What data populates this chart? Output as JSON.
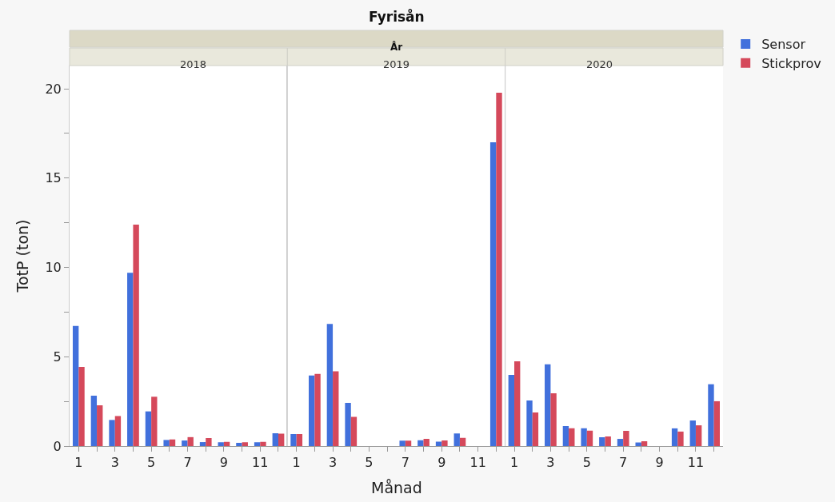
{
  "chart_data": [
    {
      "type": "bar",
      "subtitle": "2018",
      "ylabel": "TotP (ton)",
      "legend": "top right",
      "categories": [
        "1",
        null,
        "3",
        null,
        "5",
        null,
        "7",
        null,
        "9",
        null,
        "11",
        null
      ],
      "ylim": [
        0,
        21.3
      ],
      "yticks": [
        0,
        {
          "value": 2.5,
          "label": null
        },
        5,
        {
          "value": 7.5,
          "label": null
        },
        10,
        {
          "value": 12.5,
          "label": null
        },
        15,
        {
          "value": 17.5,
          "label": null
        },
        20
      ],
      "series": [
        {
          "name": "Sensor",
          "color": "#4170dc",
          "values": [
            6.72,
            2.82,
            1.46,
            9.7,
            1.94,
            0.34,
            0.31,
            0.22,
            0.21,
            0.18,
            0.21,
            0.72
          ]
        },
        {
          "name": "Stickprov",
          "color": "#d5495b",
          "values": [
            4.43,
            2.28,
            1.68,
            12.4,
            2.76,
            0.37,
            0.5,
            0.45,
            0.24,
            0.21,
            0.24,
            0.69
          ]
        }
      ]
    },
    {
      "type": "bar",
      "title": "Fyrisån",
      "annotations": [
        "År"
      ],
      "subtitle": "2019",
      "xlabel": "Månad",
      "tick_labels": "x",
      "categories": [
        "1",
        null,
        "3",
        null,
        "5",
        null,
        "7",
        null,
        "9",
        null,
        "11",
        null
      ],
      "ylim": [
        0,
        21.3
      ],
      "series": [
        {
          "color": "#4170dc",
          "values": [
            0.67,
            3.95,
            6.83,
            2.42,
            null,
            null,
            0.3,
            0.33,
            0.25,
            0.7,
            null,
            17.0
          ]
        },
        {
          "color": "#d5495b",
          "values": [
            0.67,
            4.04,
            4.18,
            1.63,
            null,
            null,
            0.3,
            0.4,
            0.31,
            0.46,
            null,
            19.78
          ]
        }
      ]
    },
    {
      "type": "bar",
      "subtitle": "2020",
      "tick_labels": "x",
      "categories": [
        "1",
        null,
        "3",
        null,
        "5",
        null,
        "7",
        null,
        "9",
        null,
        "11",
        null
      ],
      "ylim": [
        0,
        21.3
      ],
      "series": [
        {
          "color": "#4170dc",
          "values": [
            3.98,
            2.55,
            4.58,
            1.12,
            1.0,
            0.49,
            0.4,
            0.2,
            null,
            0.99,
            1.43,
            3.46
          ]
        },
        {
          "color": "#d5495b",
          "values": [
            4.74,
            1.88,
            2.95,
            1.0,
            0.86,
            0.54,
            0.85,
            0.27,
            null,
            0.81,
            1.16,
            2.51
          ]
        }
      ]
    }
  ]
}
